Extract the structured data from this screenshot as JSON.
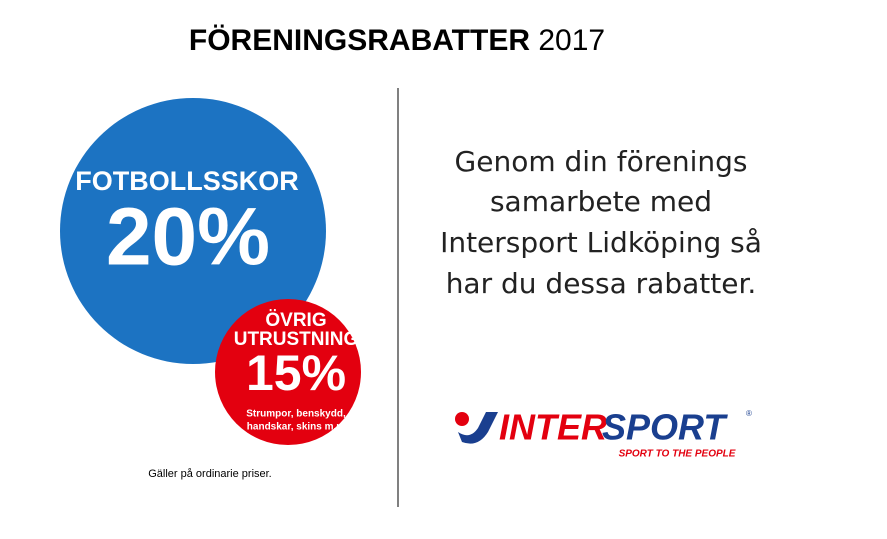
{
  "header": {
    "title_bold": "FÖRENINGSRABATTER",
    "title_year": "2017"
  },
  "offer_main": {
    "label": "FOTBOLLSSKOR",
    "discount": "20%"
  },
  "offer_other": {
    "label_lines": [
      "ÖVRIG",
      "UTRUSTNING"
    ],
    "discount": "15%",
    "detail_lines": [
      "Strumpor, benskydd,",
      "handskar, skins m.m"
    ]
  },
  "note": "Gäller på ordinarie priser.",
  "message_lines": [
    "Genom din förenings",
    "samarbete med",
    "Intersport Lidköping så",
    "har du dessa rabatter."
  ],
  "logo": {
    "part_red": "INTER",
    "part_blue": "SPORT",
    "registered": "®",
    "tagline": "SPORT TO THE PEOPLE"
  }
}
